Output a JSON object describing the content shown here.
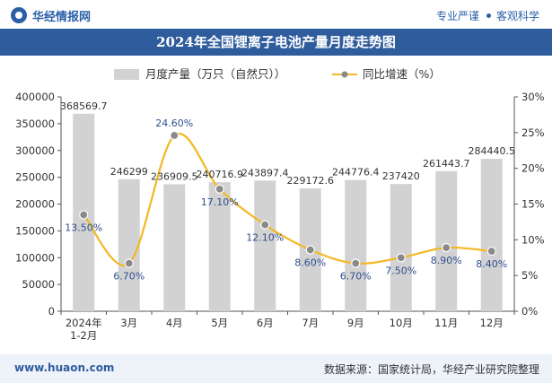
{
  "header": {
    "brand": "华经情报网",
    "tag1": "专业严谨",
    "tag2": "客观科学"
  },
  "footer": {
    "site": "www.huaon.com",
    "source": "数据来源：国家统计局，华经产业研究院整理"
  },
  "colors": {
    "bar": "#d2d2d2",
    "line": "#f3b825",
    "marker": "#8a8a8a",
    "title_bg": "#2f5c9d"
  },
  "chart_data": {
    "type": "bar",
    "title": "2024年全国锂离子电池产量月度走势图",
    "categories": [
      "2024年\n1-2月",
      "3月",
      "4月",
      "5月",
      "6月",
      "7月",
      "9月",
      "10月",
      "11月",
      "12月"
    ],
    "series": [
      {
        "name": "月度产量（万只（自然只））",
        "type": "bar",
        "axis": "left",
        "values": [
          368569.7,
          246299,
          236909.5,
          240716.9,
          243897.4,
          229172.6,
          244776.4,
          237420,
          261443.7,
          284440.5
        ],
        "labels": [
          "368569.7",
          "246299",
          "236909.5",
          "240716.9",
          "243897.4",
          "229172.6",
          "244776.4",
          "237420",
          "261443.7",
          "284440.5"
        ]
      },
      {
        "name": "同比增速（%）",
        "type": "line",
        "axis": "right",
        "values": [
          13.5,
          6.7,
          24.6,
          17.1,
          12.1,
          8.6,
          6.7,
          7.5,
          8.9,
          8.4
        ],
        "labels": [
          "13.50%",
          "6.70%",
          "24.60%",
          "17.10%",
          "12.10%",
          "8.60%",
          "6.70%",
          "7.50%",
          "8.90%",
          "8.40%"
        ]
      }
    ],
    "y_left": {
      "min": 0,
      "max": 400000,
      "ticks": [
        "0",
        "50000",
        "100000",
        "150000",
        "200000",
        "250000",
        "300000",
        "350000",
        "400000"
      ]
    },
    "y_right": {
      "min": 0,
      "max": 30,
      "ticks": [
        "0%",
        "5%",
        "10%",
        "15%",
        "20%",
        "25%",
        "30%"
      ]
    },
    "legend_position": "top-center",
    "grid": false
  }
}
